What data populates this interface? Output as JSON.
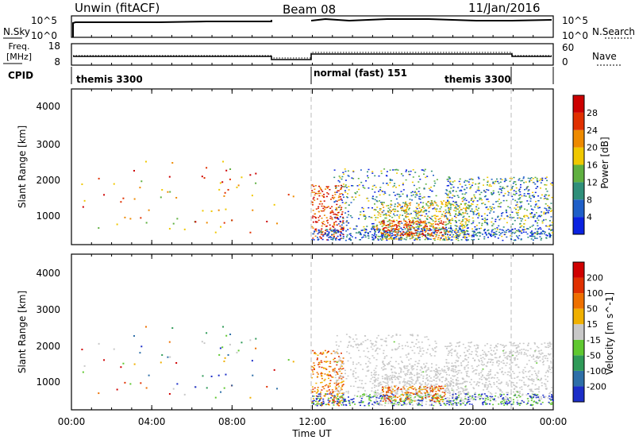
{
  "header": {
    "station": "Unwin (fitACF)",
    "beam": "Beam 08",
    "date": "11/Jan/2016"
  },
  "nsky_panel": {
    "left_label": "N.Sky",
    "right_label": "N.Search",
    "ticks_left": [
      "10^5",
      "10^0"
    ],
    "ticks_right": [
      "10^5",
      "10^0"
    ]
  },
  "freq_panel": {
    "left_label": "Freq.",
    "left_unit": "[MHz]",
    "ticks_left": [
      "18",
      "8"
    ],
    "right_label": "Nave",
    "ticks_right": [
      "60",
      "0"
    ]
  },
  "cpid_panel": {
    "label": "CPID",
    "segments": [
      "themis 3300",
      "normal (fast) 151",
      "themis 3300"
    ]
  },
  "x_axis": {
    "label": "Time UT",
    "ticks": [
      "00:00",
      "04:00",
      "08:00",
      "12:00",
      "16:00",
      "20:00",
      "00:00"
    ]
  },
  "chart_data": [
    {
      "type": "heatmap",
      "title": "Power",
      "ylabel": "Slant Range [km]",
      "xlabel": "Time UT",
      "ylim": [
        180,
        4500
      ],
      "y_ticks": [
        "1000",
        "2000",
        "3000",
        "4000"
      ],
      "colorbar": {
        "label": "Power [dB]",
        "ticks": [
          "4",
          "8",
          "12",
          "16",
          "20",
          "24",
          "28"
        ],
        "colors": [
          "#0a22e0",
          "#1f5fc8",
          "#2f8f7a",
          "#5fb040",
          "#f0c800",
          "#ee8a00",
          "#e03000",
          "#cc0000"
        ]
      }
    },
    {
      "type": "heatmap",
      "title": "Velocity",
      "ylabel": "Slant Range [km]",
      "xlabel": "Time UT",
      "ylim": [
        180,
        4500
      ],
      "y_ticks": [
        "1000",
        "2000",
        "3000",
        "4000"
      ],
      "colorbar": {
        "label": "Velocity [m s^-1]",
        "ticks": [
          "200",
          "100",
          "50",
          "15",
          "-15",
          "-50",
          "-100",
          "-200"
        ],
        "colors": [
          "#1c2ec8",
          "#2e6fa8",
          "#2f9a58",
          "#5fc830",
          "#c8c8c8",
          "#f0b000",
          "#ee7000",
          "#e03000",
          "#d00000"
        ]
      }
    }
  ]
}
